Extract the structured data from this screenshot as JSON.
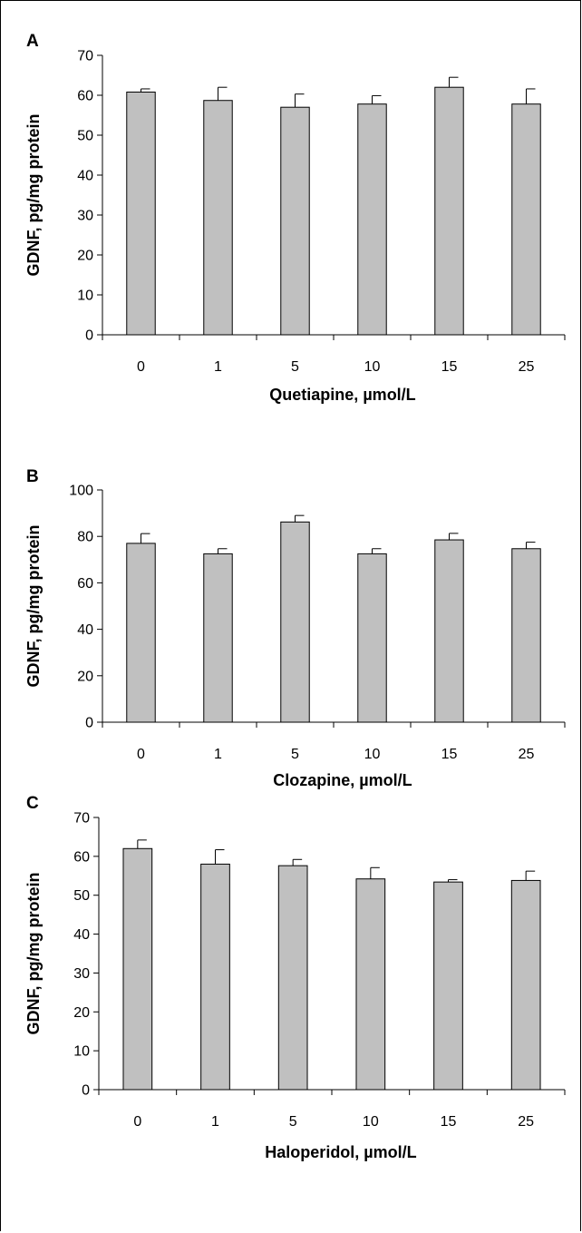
{
  "chart_data": [
    {
      "type": "bar",
      "panel": "A",
      "categories": [
        "0",
        "1",
        "5",
        "10",
        "15",
        "25"
      ],
      "values": [
        60.8,
        58.7,
        57.0,
        57.8,
        62.0,
        57.8
      ],
      "errors": [
        0.8,
        3.3,
        3.3,
        2.1,
        2.5,
        3.8
      ],
      "xlabel": "Quetiapine, µmol/L",
      "ylabel": "GDNF, pg/mg protein",
      "ylim": [
        0,
        70
      ],
      "yticks": [
        "0",
        "10",
        "20",
        "30",
        "40",
        "50",
        "60",
        "70"
      ],
      "grid": false,
      "bar_color": "#c0c0c0"
    },
    {
      "type": "bar",
      "panel": "B",
      "categories": [
        "0",
        "1",
        "5",
        "10",
        "15",
        "25"
      ],
      "values": [
        77.0,
        72.5,
        86.2,
        72.5,
        78.5,
        74.7
      ],
      "errors": [
        4.2,
        2.2,
        2.8,
        2.2,
        2.8,
        2.8
      ],
      "xlabel": "Clozapine, µmol/L",
      "ylabel": "GDNF, pg/mg protein",
      "ylim": [
        0,
        100
      ],
      "yticks": [
        "0",
        "20",
        "40",
        "60",
        "80",
        "100"
      ],
      "grid": false,
      "bar_color": "#c0c0c0"
    },
    {
      "type": "bar",
      "panel": "C",
      "categories": [
        "0",
        "1",
        "5",
        "10",
        "15",
        "25"
      ],
      "values": [
        62.0,
        58.0,
        57.6,
        54.2,
        53.4,
        53.8
      ],
      "errors": [
        2.2,
        3.7,
        1.6,
        2.9,
        0.6,
        2.4
      ],
      "xlabel": "Haloperidol, µmol/L",
      "ylabel": "GDNF, pg/mg protein",
      "ylim": [
        0,
        70
      ],
      "yticks": [
        "0",
        "10",
        "20",
        "30",
        "40",
        "50",
        "60",
        "70"
      ],
      "grid": false,
      "bar_color": "#c0c0c0"
    }
  ]
}
